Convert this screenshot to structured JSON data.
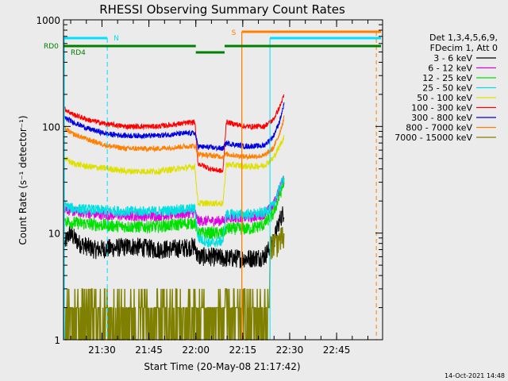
{
  "chart_data": {
    "type": "line",
    "title": "RHESSI Observing Summary Count Rates",
    "xlabel": "Start Time (20-May-08 21:17:42)",
    "ylabel": "Count Rate (s⁻¹ detector⁻¹)",
    "y_scale": "log",
    "ylim": [
      1,
      1000
    ],
    "y_ticks": [
      1,
      10,
      100,
      1000
    ],
    "y_tick_labels": [
      "1",
      "10",
      "100",
      "1000"
    ],
    "x_unit": "minutes since 21:17:42",
    "xlim": [
      0,
      102
    ],
    "x_ticks": [
      12.3,
      27.3,
      42.3,
      57.3,
      72.3,
      87.3
    ],
    "x_tick_labels": [
      "21:30",
      "21:45",
      "22:00",
      "22:15",
      "22:30",
      "22:45"
    ],
    "legend": {
      "placement": "right",
      "header": [
        "Det 1,3,4,5,6,9,",
        "FDecim 1, Att 0"
      ]
    },
    "series": [
      {
        "name": "3 - 6 keV",
        "color": "#000000",
        "noise": 0.09,
        "x": [
          0.5,
          2,
          5,
          10,
          15,
          22,
          30,
          38,
          42,
          43,
          47,
          51,
          52,
          55,
          60,
          64,
          67,
          69,
          70.5
        ],
        "y": [
          8,
          10,
          8,
          7,
          7.2,
          7.5,
          7,
          7.2,
          7.5,
          6,
          6,
          5.8,
          5.8,
          5.8,
          5.8,
          6,
          8,
          13,
          16
        ]
      },
      {
        "name": "6 - 12 keV",
        "color": "#e000e0",
        "noise": 0.05,
        "x": [
          0.5,
          3,
          10,
          20,
          30,
          36,
          42,
          43,
          51,
          52,
          60,
          64,
          67,
          69,
          70.5
        ],
        "y": [
          17,
          16,
          15,
          14.5,
          14.5,
          15,
          15.5,
          13,
          13,
          14,
          14,
          15,
          18,
          26,
          32
        ]
      },
      {
        "name": "12 - 25 keV",
        "color": "#00e000",
        "noise": 0.06,
        "x": [
          0.5,
          3,
          10,
          20,
          30,
          36,
          42,
          43,
          51,
          52,
          60,
          64,
          67,
          69,
          70.5
        ],
        "y": [
          13,
          12.5,
          12,
          11.5,
          11.5,
          12,
          12.5,
          10,
          10,
          11,
          11,
          12,
          15,
          22,
          30
        ]
      },
      {
        "name": "25 - 50 keV",
        "color": "#00e0e0",
        "noise": 0.05,
        "x": [
          0.5,
          3,
          10,
          20,
          30,
          36,
          42,
          43,
          47,
          51,
          52,
          60,
          64,
          67,
          69,
          70.5
        ],
        "y": [
          18,
          17,
          16.5,
          16,
          16,
          16.5,
          17,
          9,
          8,
          8.5,
          15,
          15,
          15.5,
          18,
          26,
          34
        ]
      },
      {
        "name": "50 - 100 keV",
        "color": "#e0e000",
        "noise": 0.03,
        "x": [
          0.5,
          3,
          8,
          15,
          20,
          30,
          36,
          42,
          43,
          51,
          52,
          60,
          64,
          67,
          69,
          70.5
        ],
        "y": [
          50,
          45,
          42,
          40,
          38,
          38,
          40,
          42,
          19,
          19,
          44,
          42,
          43,
          50,
          65,
          80
        ]
      },
      {
        "name": "100 - 300 keV",
        "color": "#ff0000",
        "noise": 0.025,
        "x": [
          0.5,
          3,
          8,
          14,
          20,
          30,
          36,
          42,
          43,
          47,
          51,
          52,
          58,
          64,
          67,
          69,
          70.5
        ],
        "y": [
          145,
          130,
          115,
          105,
          100,
          100,
          105,
          110,
          45,
          40,
          38,
          110,
          100,
          100,
          115,
          150,
          195
        ]
      },
      {
        "name": "300 - 800 keV",
        "color": "#0000e0",
        "noise": 0.025,
        "x": [
          0.5,
          3,
          8,
          14,
          20,
          30,
          36,
          42,
          43,
          51,
          52,
          58,
          64,
          67,
          69,
          70.5
        ],
        "y": [
          120,
          110,
          95,
          85,
          82,
          82,
          85,
          87,
          65,
          62,
          70,
          65,
          66,
          80,
          110,
          160
        ]
      },
      {
        "name": "800 - 7000 keV",
        "color": "#ff8000",
        "noise": 0.025,
        "x": [
          0.5,
          3,
          8,
          14,
          20,
          30,
          36,
          42,
          43,
          51,
          52,
          58,
          64,
          67,
          69,
          70.5
        ],
        "y": [
          95,
          85,
          75,
          66,
          62,
          62,
          64,
          66,
          55,
          52,
          55,
          52,
          53,
          62,
          85,
          120
        ]
      },
      {
        "name": "7000 - 15000 keV",
        "color": "#808000",
        "noise": 0,
        "x": [
          0.5,
          70.5
        ],
        "y": [
          1,
          9
        ]
      }
    ],
    "annotations": [
      {
        "text": "N",
        "type": "night",
        "x": [
          0,
          14
        ]
      },
      {
        "text": "S",
        "type": "saa",
        "x": [
          57,
          102
        ]
      }
    ],
    "flag_labels": [
      "RD0",
      "RD4"
    ]
  },
  "timestamp": "14-Oct-2021 14:48"
}
